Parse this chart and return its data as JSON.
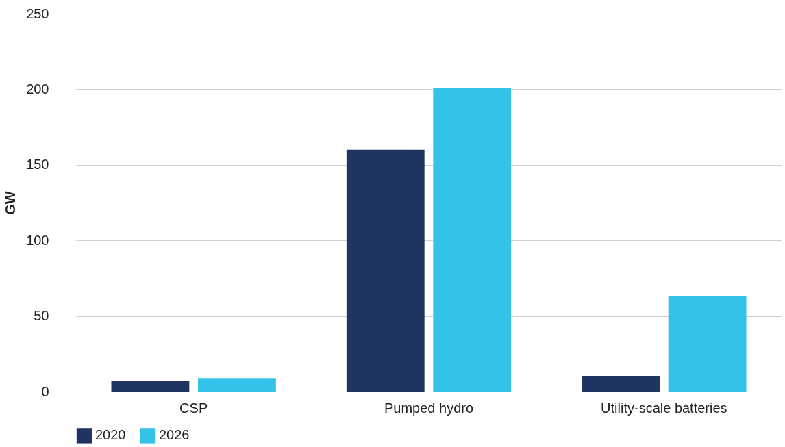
{
  "chart_data": {
    "type": "bar",
    "ylabel": "GW",
    "categories": [
      "CSP",
      "Pumped hydro",
      "Utility-scale batteries"
    ],
    "series": [
      {
        "name": "2020",
        "color": "#1f3461",
        "values": [
          7,
          160,
          10
        ]
      },
      {
        "name": "2026",
        "color": "#33c3e9",
        "values": [
          9,
          201,
          63
        ]
      }
    ],
    "ylim": [
      0,
      250
    ],
    "yticks": [
      0,
      50,
      100,
      150,
      200,
      250
    ],
    "grid": "y",
    "legend": "bottom"
  }
}
